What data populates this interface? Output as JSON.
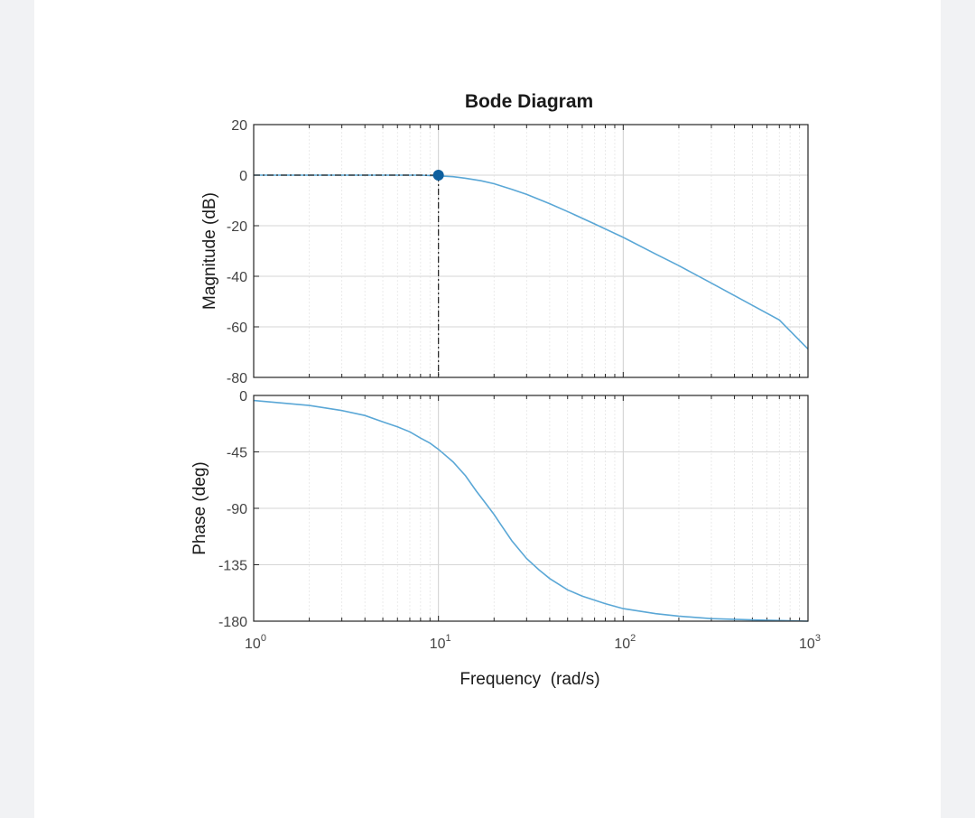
{
  "chart_data": {
    "type": "line",
    "title": "Bode Diagram",
    "xlabel": "Frequency  (rad/s)",
    "x_scale": "log",
    "xlim": [
      1,
      1000
    ],
    "x_ticks": [
      {
        "value": 1,
        "base": "10",
        "exp": "0"
      },
      {
        "value": 10,
        "base": "10",
        "exp": "1"
      },
      {
        "value": 100,
        "base": "10",
        "exp": "2"
      },
      {
        "value": 1000,
        "base": "10",
        "exp": "3"
      }
    ],
    "grid": true,
    "colors": {
      "line": "#5aa7d6",
      "marker": "#0e5f9e",
      "axis": "#262626",
      "grid": "#d8d8d8"
    },
    "magnitude": {
      "ylabel": "Magnitude (dB)",
      "ylim": [
        -80,
        20
      ],
      "yticks": [
        "20",
        "0",
        "-20",
        "-40",
        "-60",
        "-80"
      ],
      "points": [
        [
          1,
          0
        ],
        [
          2,
          0
        ],
        [
          4,
          0
        ],
        [
          6,
          0
        ],
        [
          8,
          0
        ],
        [
          10,
          -0.3
        ],
        [
          12,
          -0.6
        ],
        [
          14,
          -1.2
        ],
        [
          17,
          -2.2
        ],
        [
          20,
          -3.4
        ],
        [
          25,
          -5.6
        ],
        [
          30,
          -7.6
        ],
        [
          40,
          -11.3
        ],
        [
          50,
          -14.4
        ],
        [
          70,
          -19.3
        ],
        [
          100,
          -24.6
        ],
        [
          150,
          -31.2
        ],
        [
          200,
          -35.8
        ],
        [
          300,
          -42.7
        ],
        [
          500,
          -51.5
        ],
        [
          700,
          -57.3
        ],
        [
          1000,
          -68.8
        ]
      ],
      "marker": {
        "x": 10,
        "y": 0
      }
    },
    "phase": {
      "ylabel": "Phase (deg)",
      "ylim": [
        -180,
        0
      ],
      "yticks": [
        "0",
        "-45",
        "-90",
        "-135",
        "-180"
      ],
      "points": [
        [
          1,
          -4
        ],
        [
          2,
          -8
        ],
        [
          3,
          -12
        ],
        [
          4,
          -16
        ],
        [
          5,
          -21
        ],
        [
          6,
          -25
        ],
        [
          7,
          -29
        ],
        [
          8,
          -34
        ],
        [
          9,
          -38
        ],
        [
          10,
          -43
        ],
        [
          12,
          -53
        ],
        [
          14,
          -64
        ],
        [
          16,
          -76
        ],
        [
          18,
          -86
        ],
        [
          20,
          -95
        ],
        [
          22,
          -104
        ],
        [
          25,
          -116
        ],
        [
          30,
          -130
        ],
        [
          35,
          -139
        ],
        [
          40,
          -146
        ],
        [
          50,
          -155
        ],
        [
          60,
          -160
        ],
        [
          80,
          -166
        ],
        [
          100,
          -170
        ],
        [
          150,
          -174
        ],
        [
          200,
          -176
        ],
        [
          300,
          -178
        ],
        [
          500,
          -179
        ],
        [
          1000,
          -180
        ]
      ]
    }
  }
}
